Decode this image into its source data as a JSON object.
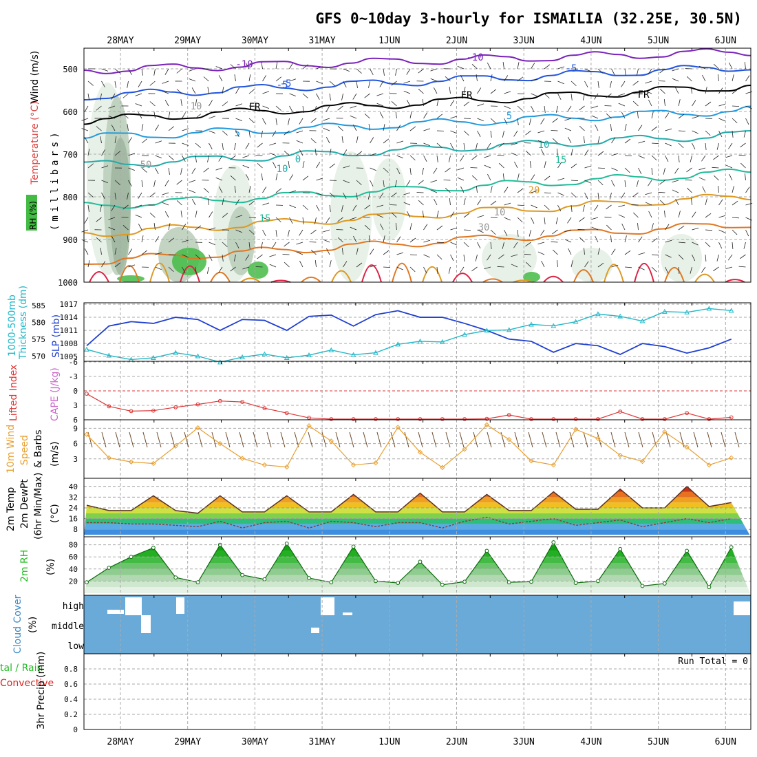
{
  "title": "GFS 0~10day 3-hourly for ISMAILIA (32.25E, 30.5N)",
  "dates": [
    "28MAY",
    "29MAY",
    "30MAY",
    "31MAY",
    "1JUN",
    "2JUN",
    "3JUN",
    "4JUN",
    "5JUN",
    "6JUN"
  ],
  "colors": {
    "wind_10m": "#e8a030",
    "rh": "#22bb22",
    "lifted_index": "#dd3333",
    "cape": "#cc66cc",
    "slp": "#1f3fcf",
    "thickness": "#22b8c8",
    "cloud": "#6aaad8",
    "precip_total": "#22bb22",
    "precip_conv": "#dd2222",
    "temp_label": "#dd4444",
    "cloud_label": "#3a8ac8"
  },
  "panels": {
    "upper": {
      "axis_label_rh": "RH (%)",
      "axis_label_temp": "Temperature (°C)",
      "axis_label_wind": "Wind (m/s)",
      "axis_label_mb": "(millibars)",
      "y_ticks": [
        "500",
        "600",
        "700",
        "800",
        "900",
        "1000"
      ],
      "contour_labels": [
        "-10",
        "-10",
        "-5",
        "-5",
        "-5",
        "FR",
        "FR",
        "FR",
        "5",
        "5",
        "10",
        "15",
        "10",
        "15",
        "20",
        "0",
        "30",
        "50",
        "10",
        "10"
      ]
    },
    "slp": {
      "label_thickness_1": "1000-500mb",
      "label_thickness_2": "Thickness (dm)",
      "label_slp": "SLP (mb)",
      "left_ticks": [
        "585",
        "580",
        "575",
        "570"
      ],
      "right_ticks": [
        "1017",
        "1014",
        "1011",
        "1008",
        "1005"
      ]
    },
    "li": {
      "label_li": "Lifted Index",
      "label_cape": "CAPE (J/kg)",
      "ticks": [
        "-6",
        "-3",
        "0",
        "3",
        "6"
      ]
    },
    "wind": {
      "label_1": "10m Wind",
      "label_2": "Speed",
      "label_3": "& Barbs",
      "label_units": "(m/s)",
      "ticks": [
        "9",
        "6",
        "3"
      ]
    },
    "temp": {
      "label_1": "2m Temp",
      "label_2": "2m DewPt",
      "label_3": "(6hr Min/Max)",
      "label_units": "(°C)",
      "ticks": [
        "40",
        "32",
        "24",
        "16",
        "8"
      ]
    },
    "rh2m": {
      "label_1": "2m RH",
      "label_units": "(%)",
      "ticks": [
        "80",
        "60",
        "40",
        "20"
      ]
    },
    "cloud": {
      "label_1": "Cloud Cover",
      "label_units": "(%)",
      "levels": [
        "high",
        "middle",
        "low"
      ]
    },
    "precip": {
      "label_total": "tal / Rain",
      "label_conv": "Convective",
      "label_units": "3hr Precip (mm)",
      "ticks": [
        "0.8",
        "0.6",
        "0.4",
        "0.2",
        "0"
      ],
      "run_total": "Run Total = 0"
    }
  },
  "chart_data": [
    {
      "type": "line",
      "name": "slp_thickness",
      "series": [
        {
          "name": "SLP (mb)",
          "values": [
            1007.5,
            1012,
            1013,
            1012.6,
            1014,
            1013.5,
            1011,
            1013.5,
            1013.3,
            1011,
            1014.2,
            1014.5,
            1012,
            1014.6,
            1015.5,
            1014,
            1014,
            1012.6,
            1011,
            1009,
            1008.5,
            1006,
            1008,
            1007.5,
            1005.5,
            1008,
            1007.3,
            1005.8,
            1007,
            1009
          ]
        },
        {
          "name": "1000-500mb Thickness (dm)",
          "values": [
            572,
            570.2,
            569,
            569.5,
            571,
            570,
            568.2,
            569.7,
            570.6,
            569.5,
            570.3,
            571.8,
            570.4,
            571,
            573.5,
            574.4,
            574.2,
            576.4,
            577.6,
            577.8,
            579.4,
            579,
            580.2,
            582.5,
            581.8,
            580.4,
            583.2,
            583,
            584.1,
            583.5
          ]
        }
      ]
    },
    {
      "type": "line",
      "name": "lifted_index",
      "ylim": [
        -6,
        6
      ],
      "values": [
        0.6,
        3.2,
        4.2,
        4.1,
        3.4,
        2.8,
        2.1,
        2.3,
        3.6,
        4.6,
        5.6,
        6,
        6.5,
        6.5,
        6.6,
        6.6,
        6.6,
        6.6,
        5.8,
        5,
        6.6,
        6.1,
        6.6,
        6.6,
        4.3,
        6.6,
        6.6,
        4.6,
        6.6,
        5.5
      ]
    },
    {
      "type": "line",
      "name": "wind_10m_speed",
      "ylim": [
        0,
        10
      ],
      "values": [
        7.8,
        3.2,
        2.4,
        2.1,
        5.5,
        9.1,
        6,
        3.1,
        1.8,
        1.4,
        9.5,
        6.5,
        1.8,
        2.2,
        9.2,
        4.3,
        1.3,
        4.9,
        9.7,
        6.8,
        2.6,
        1.8,
        8.8,
        7,
        3.7,
        2.5,
        8.3,
        5.3,
        1.8,
        3.2
      ]
    },
    {
      "type": "area",
      "name": "temp_2m",
      "ylim": [
        4,
        42
      ],
      "series": [
        {
          "name": "2m Temp",
          "values": [
            26,
            22,
            22,
            33,
            22,
            20,
            33,
            21,
            21,
            33,
            21,
            21,
            34,
            21,
            21,
            35,
            21,
            21,
            34,
            22,
            22,
            36,
            23,
            23,
            38,
            24,
            24,
            40,
            25,
            28
          ]
        },
        {
          "name": "2m DewPt",
          "values": [
            13,
            13,
            12,
            12,
            11,
            10,
            14,
            9,
            13,
            14,
            9,
            14,
            13,
            10,
            13,
            13,
            9,
            14,
            17,
            12,
            14,
            16,
            11,
            13,
            15,
            10,
            13,
            16,
            13,
            16
          ]
        }
      ]
    },
    {
      "type": "area",
      "name": "rh_2m",
      "ylim": [
        0,
        90
      ],
      "values": [
        18,
        42,
        60,
        75,
        26,
        18,
        80,
        30,
        23,
        82,
        25,
        18,
        77,
        20,
        17,
        52,
        14,
        19,
        70,
        18,
        19,
        84,
        17,
        20,
        73,
        12,
        16,
        70,
        10,
        76
      ]
    },
    {
      "type": "bar",
      "name": "precip_3hr",
      "ylim": [
        0,
        0.9
      ],
      "values": [
        0,
        0,
        0,
        0,
        0,
        0,
        0,
        0,
        0,
        0,
        0,
        0,
        0,
        0,
        0,
        0,
        0,
        0,
        0,
        0,
        0,
        0,
        0,
        0,
        0,
        0,
        0,
        0,
        0,
        0
      ]
    }
  ]
}
